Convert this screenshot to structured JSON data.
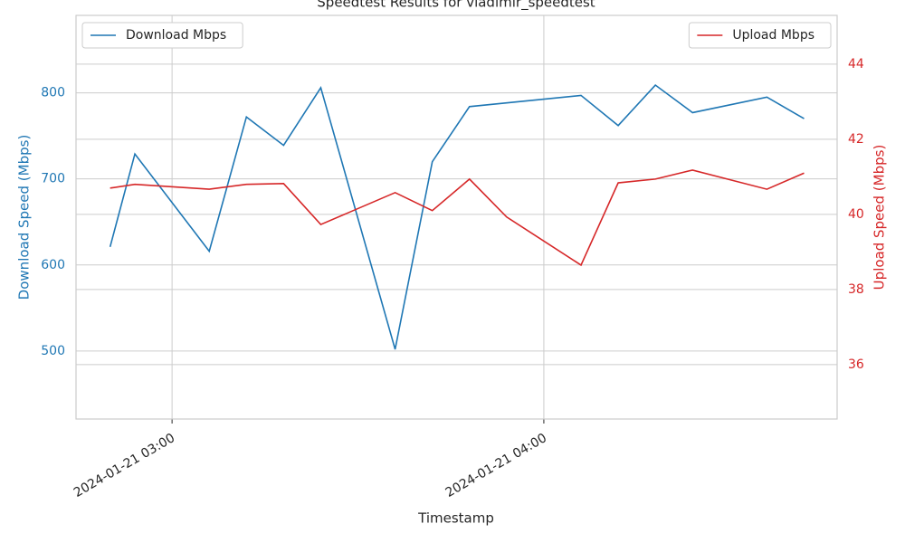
{
  "chart_data": {
    "type": "line",
    "title": "Speedtest Results for vladimir_speedtest",
    "xlabel": "Timestamp",
    "ylabel": "Download Speed (Mbps)",
    "y2label": "Upload Speed (Mbps)",
    "xlim": [
      "2024-01-21 02:44:30",
      "2024-01-21 04:47:20"
    ],
    "xticks": [
      "2024-01-21 03:00",
      "2024-01-21 04:00"
    ],
    "ylim": [
      421,
      890
    ],
    "yticks": [
      500,
      600,
      700,
      800
    ],
    "y2lim": [
      34.55,
      45.3
    ],
    "y2ticks": [
      36,
      38,
      40,
      42,
      44
    ],
    "grid": true,
    "series": [
      {
        "name": "Download Mbps",
        "color": "#1f77b4",
        "x": [
          "2024-01-21 02:50",
          "2024-01-21 02:54",
          "2024-01-21 03:06",
          "2024-01-21 03:12",
          "2024-01-21 03:18",
          "2024-01-21 03:24",
          "2024-01-21 03:36",
          "2024-01-21 03:42",
          "2024-01-21 03:48",
          "2024-01-21 04:06",
          "2024-01-21 04:12",
          "2024-01-21 04:18",
          "2024-01-21 04:24",
          "2024-01-21 04:36",
          "2024-01-21 04:42"
        ],
        "values": [
          621,
          729,
          616,
          772,
          739,
          806,
          502,
          720,
          784,
          797,
          762,
          809,
          777,
          795,
          770
        ],
        "legend": "upper left"
      },
      {
        "name": "Upload Mbps",
        "color": "#d62728",
        "axis": "y2",
        "x": [
          "2024-01-21 02:50",
          "2024-01-21 02:54",
          "2024-01-21 03:06",
          "2024-01-21 03:12",
          "2024-01-21 03:18",
          "2024-01-21 03:24",
          "2024-01-21 03:36",
          "2024-01-21 03:42",
          "2024-01-21 03:48",
          "2024-01-21 03:54",
          "2024-01-21 04:06",
          "2024-01-21 04:12",
          "2024-01-21 04:18",
          "2024-01-21 04:24",
          "2024-01-21 04:36",
          "2024-01-21 04:42"
        ],
        "values": [
          40.7,
          40.8,
          40.67,
          40.8,
          40.82,
          39.73,
          40.58,
          40.1,
          40.94,
          39.93,
          38.65,
          40.84,
          40.94,
          41.18,
          40.67,
          41.1
        ],
        "legend": "upper right"
      }
    ]
  }
}
